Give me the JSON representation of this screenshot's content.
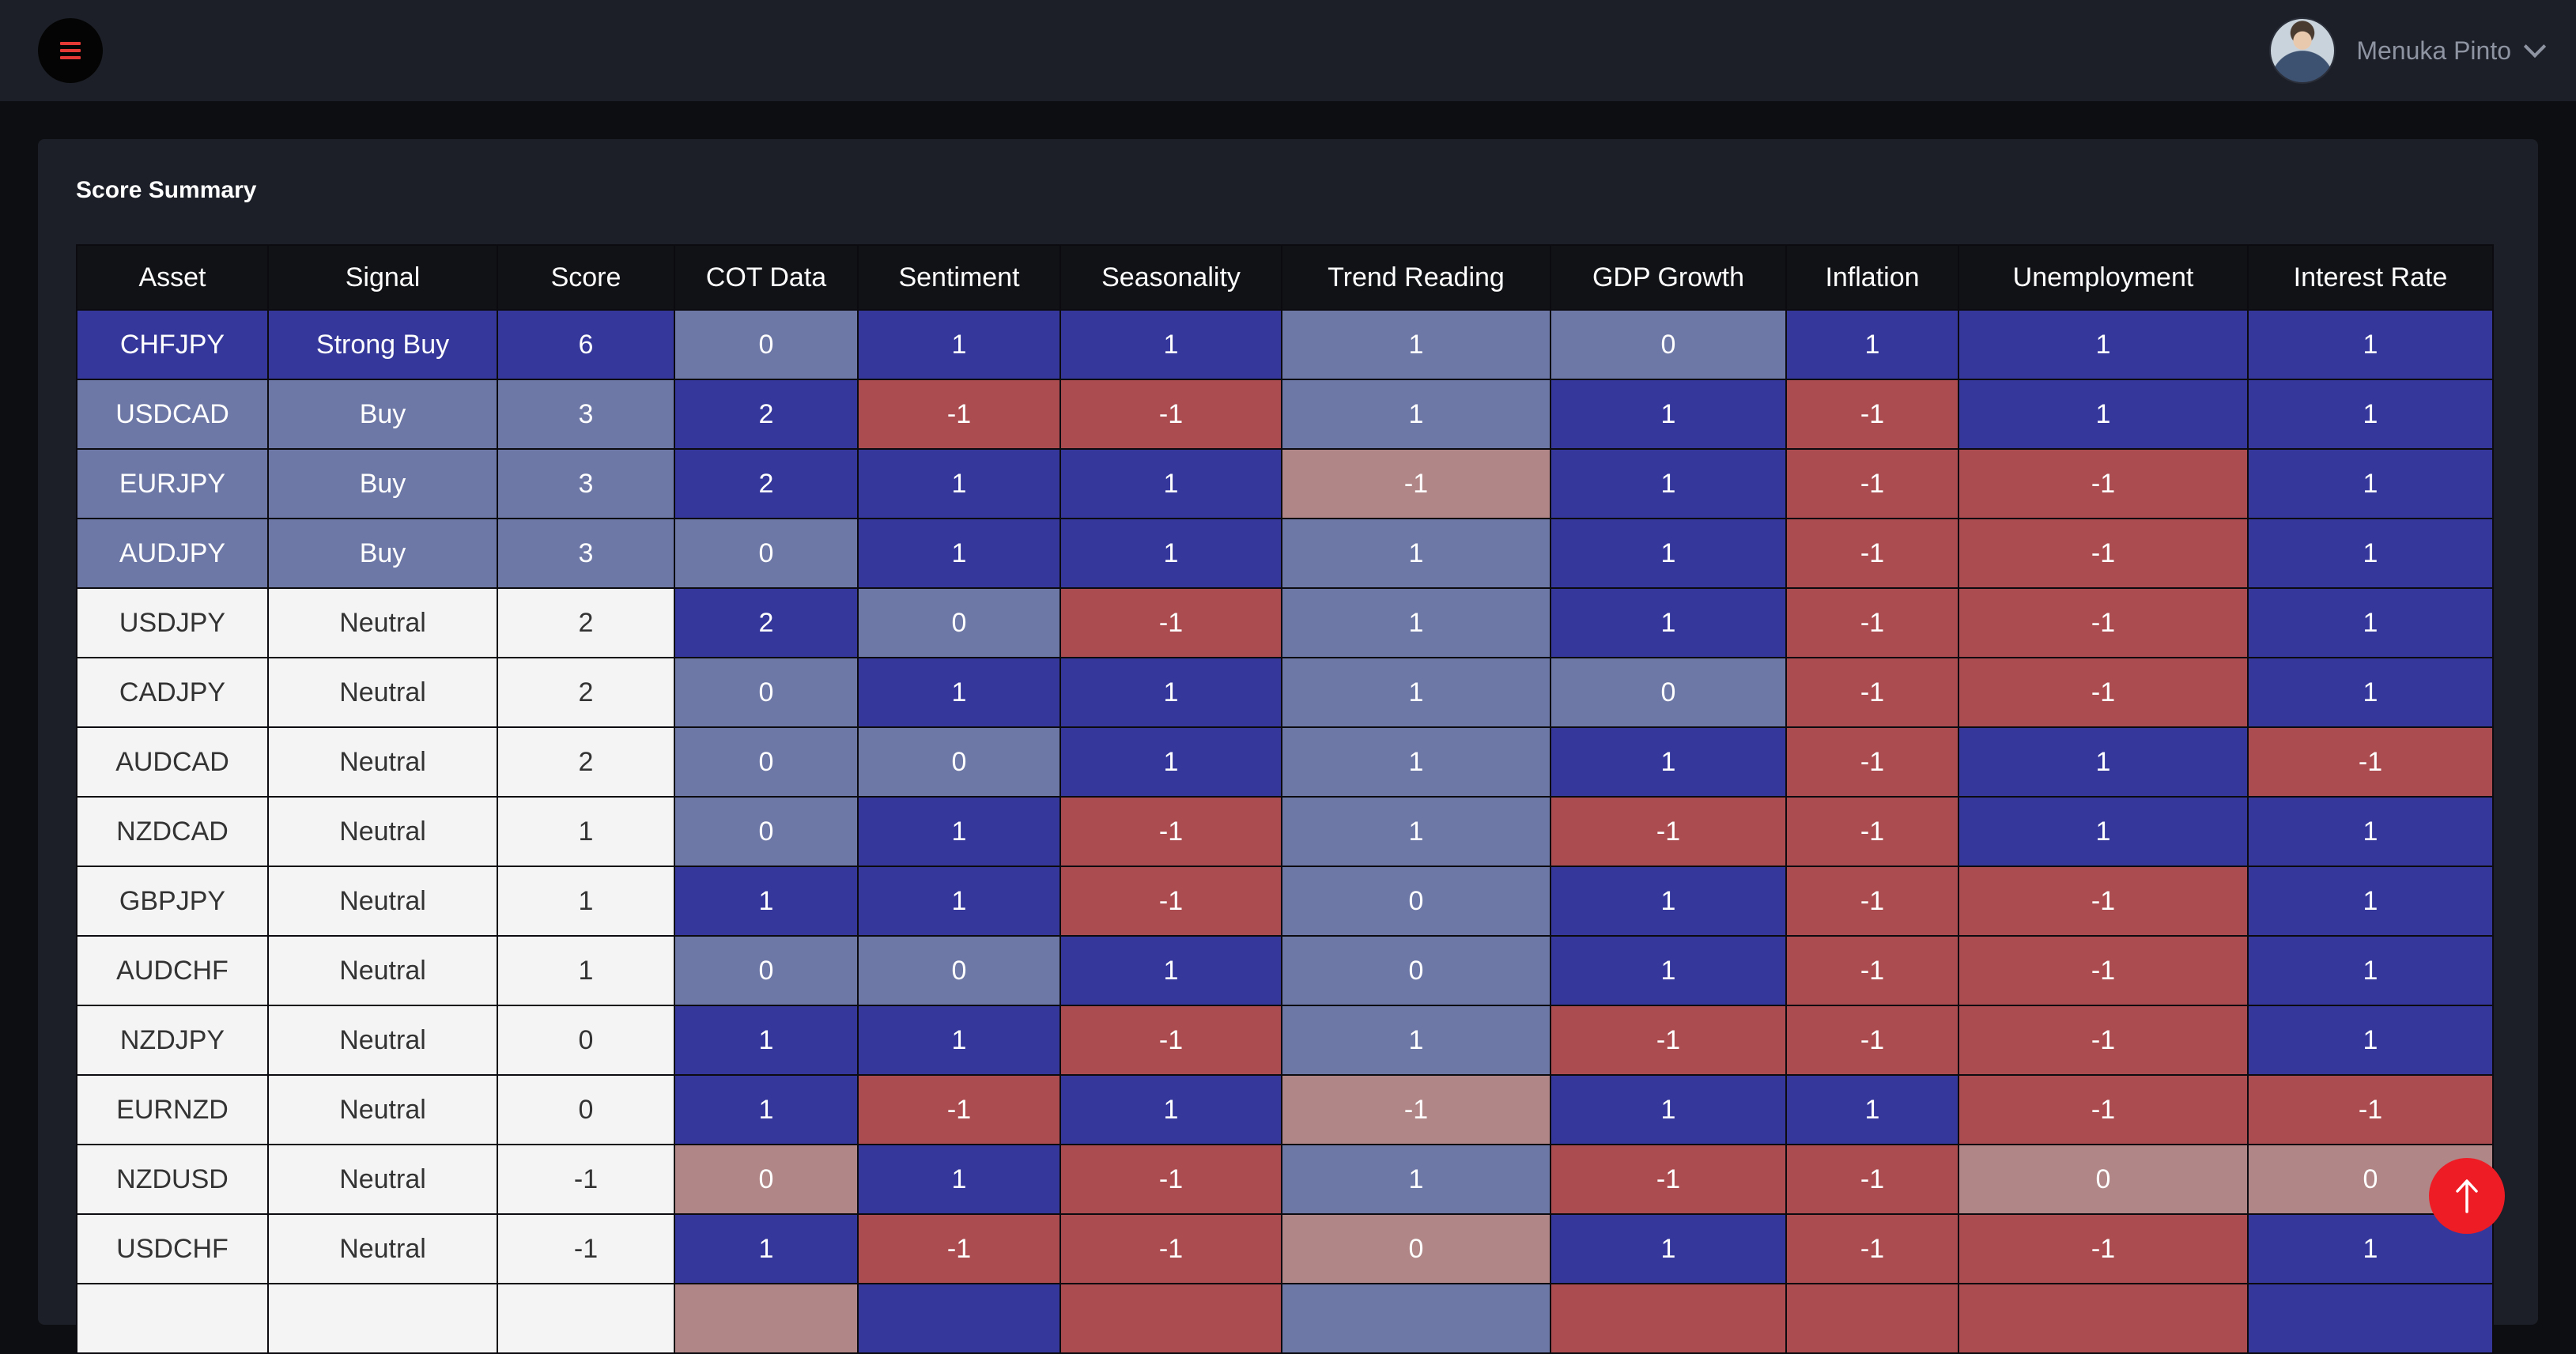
{
  "header": {
    "user_name": "Menuka Pinto"
  },
  "summary": {
    "title": "Score Summary",
    "columns": [
      "Asset",
      "Signal",
      "Score",
      "COT Data",
      "Sentiment",
      "Seasonality",
      "Trend Reading",
      "GDP Growth",
      "Inflation",
      "Unemployment",
      "Interest Rate"
    ],
    "rows": [
      [
        "CHFJPY",
        "Strong Buy",
        "6",
        "0",
        "1",
        "1",
        "1",
        "0",
        "1",
        "1",
        "1"
      ],
      [
        "USDCAD",
        "Buy",
        "3",
        "2",
        "-1",
        "-1",
        "1",
        "1",
        "-1",
        "1",
        "1"
      ],
      [
        "EURJPY",
        "Buy",
        "3",
        "2",
        "1",
        "1",
        "-1",
        "1",
        "-1",
        "-1",
        "1"
      ],
      [
        "AUDJPY",
        "Buy",
        "3",
        "0",
        "1",
        "1",
        "1",
        "1",
        "-1",
        "-1",
        "1"
      ],
      [
        "USDJPY",
        "Neutral",
        "2",
        "2",
        "0",
        "-1",
        "1",
        "1",
        "-1",
        "-1",
        "1"
      ],
      [
        "CADJPY",
        "Neutral",
        "2",
        "0",
        "1",
        "1",
        "1",
        "0",
        "-1",
        "-1",
        "1"
      ],
      [
        "AUDCAD",
        "Neutral",
        "2",
        "0",
        "0",
        "1",
        "1",
        "1",
        "-1",
        "1",
        "-1"
      ],
      [
        "NZDCAD",
        "Neutral",
        "1",
        "0",
        "1",
        "-1",
        "1",
        "-1",
        "-1",
        "1",
        "1"
      ],
      [
        "GBPJPY",
        "Neutral",
        "1",
        "1",
        "1",
        "-1",
        "0",
        "1",
        "-1",
        "-1",
        "1"
      ],
      [
        "AUDCHF",
        "Neutral",
        "1",
        "0",
        "0",
        "1",
        "0",
        "1",
        "-1",
        "-1",
        "1"
      ],
      [
        "NZDJPY",
        "Neutral",
        "0",
        "1",
        "1",
        "-1",
        "1",
        "-1",
        "-1",
        "-1",
        "1"
      ],
      [
        "EURNZD",
        "Neutral",
        "0",
        "1",
        "-1",
        "1",
        "-1",
        "1",
        "1",
        "-1",
        "-1"
      ],
      [
        "NZDUSD",
        "Neutral",
        "-1",
        "0",
        "1",
        "-1",
        "1",
        "-1",
        "-1",
        "0",
        "0"
      ],
      [
        "USDCHF",
        "Neutral",
        "-1",
        "1",
        "-1",
        "-1",
        "0",
        "1",
        "-1",
        "-1",
        "1"
      ],
      [
        "",
        "",
        "",
        "",
        "",
        "",
        "",
        "",
        "",
        "",
        ""
      ]
    ],
    "cell_colors": [
      [
        "strong",
        "strong",
        "strong",
        "mid",
        "strong",
        "strong",
        "mid",
        "mid",
        "strong",
        "strong",
        "strong"
      ],
      [
        "mid",
        "mid",
        "mid",
        "strong",
        "red",
        "red",
        "mid",
        "strong",
        "red",
        "strong",
        "strong"
      ],
      [
        "mid",
        "mid",
        "mid",
        "strong",
        "strong",
        "strong",
        "pink",
        "strong",
        "red",
        "red",
        "strong"
      ],
      [
        "mid",
        "mid",
        "mid",
        "mid",
        "strong",
        "strong",
        "mid",
        "strong",
        "red",
        "red",
        "strong"
      ],
      [
        "white",
        "white",
        "white",
        "strong",
        "mid",
        "red",
        "mid",
        "strong",
        "red",
        "red",
        "strong"
      ],
      [
        "white",
        "white",
        "white",
        "mid",
        "strong",
        "strong",
        "mid",
        "mid",
        "red",
        "red",
        "strong"
      ],
      [
        "white",
        "white",
        "white",
        "mid",
        "mid",
        "strong",
        "mid",
        "strong",
        "red",
        "strong",
        "red"
      ],
      [
        "white",
        "white",
        "white",
        "mid",
        "strong",
        "red",
        "mid",
        "red",
        "red",
        "strong",
        "strong"
      ],
      [
        "white",
        "white",
        "white",
        "strong",
        "strong",
        "red",
        "mid",
        "strong",
        "red",
        "red",
        "strong"
      ],
      [
        "white",
        "white",
        "white",
        "mid",
        "mid",
        "strong",
        "mid",
        "strong",
        "red",
        "red",
        "strong"
      ],
      [
        "white",
        "white",
        "white",
        "strong",
        "strong",
        "red",
        "mid",
        "red",
        "red",
        "red",
        "strong"
      ],
      [
        "white",
        "white",
        "white",
        "strong",
        "red",
        "strong",
        "pink",
        "strong",
        "strong",
        "red",
        "red"
      ],
      [
        "white",
        "white",
        "white",
        "pink",
        "strong",
        "red",
        "mid",
        "red",
        "red",
        "pink",
        "pink"
      ],
      [
        "white",
        "white",
        "white",
        "strong",
        "red",
        "red",
        "pink",
        "strong",
        "red",
        "red",
        "strong"
      ],
      [
        "white",
        "white",
        "white",
        "pink",
        "strong",
        "red",
        "mid",
        "red",
        "red",
        "red",
        "strong"
      ]
    ]
  },
  "colors": {
    "strong": "#35389a",
    "mid": "#6e78a6",
    "red": "#ab4d50",
    "pink": "#b08687",
    "white": "#f4f4f4",
    "accent": "#ee1c25"
  }
}
